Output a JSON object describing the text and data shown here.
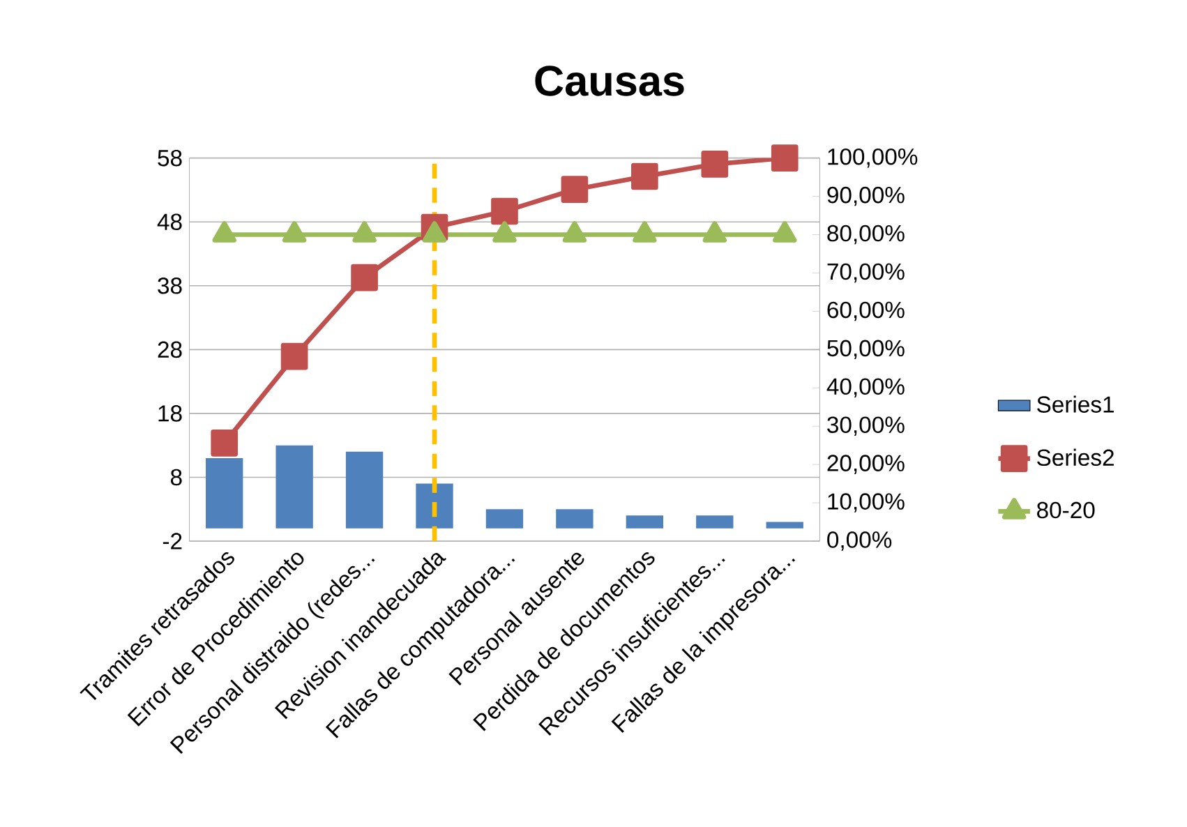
{
  "chart_data": {
    "type": "bar",
    "title": "Causas",
    "categories": [
      "Tramites retrasados",
      "Error de Procedimiento",
      "Personal distraido (redes...",
      "Revision inandecuada",
      "Fallas de computadora...",
      "Personal ausente",
      "Perdida de documentos",
      "Recursos insuficientes...",
      "Fallas de la impresora..."
    ],
    "series": [
      {
        "name": "Series1",
        "color": "#4f81bd",
        "values": [
          11,
          13,
          12,
          7,
          3,
          3,
          2,
          2,
          1
        ]
      },
      {
        "name": "Series2",
        "type": "line",
        "axis": "y2",
        "color": "#c0504d",
        "marker": "square",
        "values": [
          25.6,
          48.2,
          68.8,
          81.9,
          86.1,
          91.8,
          95.2,
          98.4,
          100
        ]
      },
      {
        "name": "80-20",
        "type": "line",
        "axis": "y2",
        "color": "#9bbb59",
        "marker": "triangle",
        "values": [
          80,
          80,
          80,
          80,
          80,
          80,
          80,
          80,
          80
        ]
      }
    ],
    "ylim": [
      -2,
      58
    ],
    "yticks": [
      -2,
      8,
      18,
      28,
      38,
      48,
      58
    ],
    "y2lim": [
      0,
      100
    ],
    "y2ticks": [
      {
        "value": 0,
        "label": "0,00%"
      },
      {
        "value": 10,
        "label": "10,00%"
      },
      {
        "value": 20,
        "label": "20,00%"
      },
      {
        "value": 30,
        "label": "30,00%"
      },
      {
        "value": 40,
        "label": "40,00%"
      },
      {
        "value": 50,
        "label": "50,00%"
      },
      {
        "value": 60,
        "label": "60,00%"
      },
      {
        "value": 70,
        "label": "70,00%"
      },
      {
        "value": 80,
        "label": "80,00%"
      },
      {
        "value": 90,
        "label": "90,00%"
      },
      {
        "value": 100,
        "label": "100,00%"
      }
    ],
    "ref_lines": [
      {
        "axis": "x",
        "value": "Revision inandecuada",
        "color": "#ffc000",
        "line_style": "dashed"
      }
    ],
    "grid": "y",
    "legend": "right"
  }
}
